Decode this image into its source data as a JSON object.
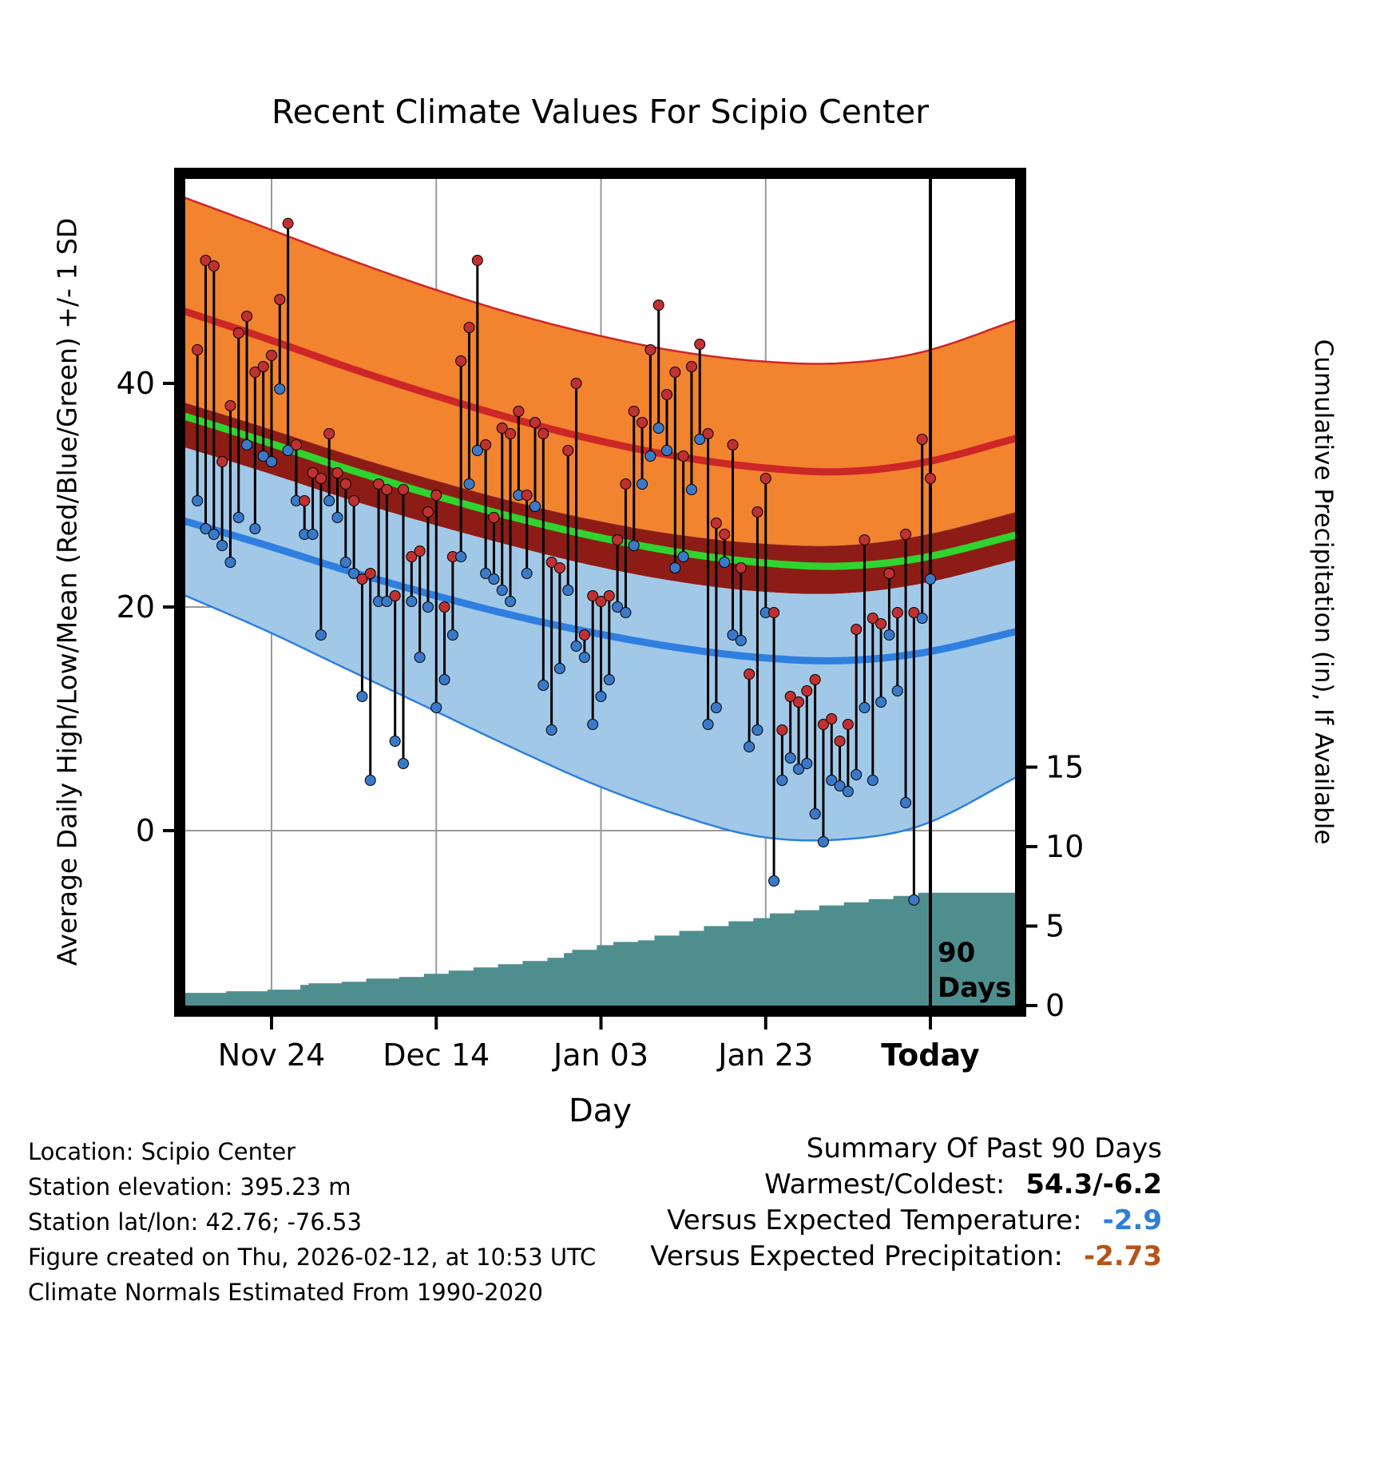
{
  "title": "Recent Climate Values For Scipio Center",
  "axes": {
    "left_label": "Average Daily High/Low/Mean (Red/Blue/Green) +/- 1 SD",
    "right_label": "Cumulative Precipitation (in), If Available",
    "x_label": "Day",
    "x_ticks": [
      {
        "day": 9,
        "label": "Nov 24",
        "bold": false
      },
      {
        "day": 29,
        "label": "Dec 14",
        "bold": false
      },
      {
        "day": 49,
        "label": "Jan 03",
        "bold": false
      },
      {
        "day": 69,
        "label": "Jan 23",
        "bold": false
      },
      {
        "day": 89,
        "label": "Today",
        "bold": true
      }
    ],
    "temp_ticks": [
      0,
      20,
      40
    ],
    "precip_ticks": [
      0,
      5,
      10,
      15
    ]
  },
  "annotations": {
    "vline_day": 89,
    "vline_label_lines": [
      "90",
      "Days"
    ]
  },
  "footer": {
    "lines": [
      "Location: Scipio Center",
      "Station elevation: 395.23 m",
      "Station lat/lon: 42.76; -76.53",
      "Figure created on Thu, 2026-02-12, at 10:53 UTC",
      "Climate Normals Estimated From 1990-2020"
    ]
  },
  "summary": {
    "title": "Summary Of Past 90 Days",
    "rows": [
      {
        "label": "Warmest/Coldest:",
        "value": "54.3/-6.2",
        "color": "#000000"
      },
      {
        "label": "Versus Expected Temperature:",
        "value": "-2.9",
        "color": "#2f7fd6"
      },
      {
        "label": "Versus Expected Precipitation:",
        "value": "-2.73",
        "color": "#b5541a"
      }
    ]
  },
  "chart_data": {
    "type": "line",
    "title": "Recent Climate Values For Scipio Center",
    "description": "90 days of daily high (red dot) / low (blue dot) temperature stems over climate-normal bands (mean high ±1SD orange, mean low ±1SD light blue, gap between bands maroon) with mean-high (red), mean (green) and mean-low (blue) curves, plus cumulative precipitation step area (teal) read on the right axis. Day index 0 = first day shown, 89 = Today (2026-02-12).",
    "x": {
      "label": "Day",
      "tick_days": [
        9,
        29,
        49,
        69,
        89
      ],
      "tick_labels": [
        "Nov 24",
        "Dec 14",
        "Jan 03",
        "Jan 23",
        "Today"
      ],
      "domain": [
        -3,
        100
      ]
    },
    "y_temp": {
      "label": "Average Daily High/Low/Mean (Red/Blue/Green) +/- 1 SD",
      "ticks": [
        0,
        20,
        40
      ],
      "range": [
        -16,
        58
      ]
    },
    "y_precip": {
      "label": "Cumulative Precipitation (in), If Available",
      "ticks": [
        0,
        5,
        10,
        15
      ]
    },
    "daily": {
      "high": [
        43,
        51,
        50.5,
        33,
        38,
        44.5,
        46,
        41,
        41.5,
        42.5,
        47.5,
        54.3,
        34.5,
        29.5,
        32,
        31.5,
        35.5,
        32,
        31,
        29.5,
        22.5,
        23,
        31,
        30.5,
        21,
        30.5,
        24.5,
        25,
        28.5,
        30,
        20,
        24.5,
        42,
        45,
        51,
        34.5,
        28,
        36,
        35.5,
        37.5,
        30,
        36.5,
        35.5,
        24,
        23.5,
        34,
        40,
        17.5,
        21,
        20.5,
        21,
        26,
        31,
        37.5,
        36.5,
        43,
        47,
        39,
        41,
        33.5,
        41.5,
        43.5,
        35.5,
        27.5,
        26.5,
        34.5,
        23.5,
        14,
        28.5,
        31.5,
        19.5,
        9,
        12,
        11.5,
        12.5,
        13.5,
        9.5,
        10,
        8,
        9.5,
        18,
        26,
        19,
        18.5,
        23,
        19.5,
        26.5,
        19.5,
        35,
        31.5
      ],
      "low": [
        29.5,
        27,
        26.5,
        25.5,
        24,
        28,
        34.5,
        27,
        33.5,
        33,
        39.5,
        34,
        29.5,
        26.5,
        26.5,
        17.5,
        29.5,
        28,
        24,
        23,
        12,
        4.5,
        20.5,
        20.5,
        8,
        6,
        20.5,
        15.5,
        20,
        11,
        13.5,
        17.5,
        24.5,
        31,
        34,
        23,
        22.5,
        21.5,
        20.5,
        30,
        23,
        29,
        13,
        9,
        14.5,
        21.5,
        16.5,
        15.5,
        9.5,
        12,
        13.5,
        20,
        19.5,
        25.5,
        31,
        33.5,
        36,
        34,
        23.5,
        24.5,
        30.5,
        35,
        9.5,
        11,
        24,
        17.5,
        17,
        7.5,
        9,
        19.5,
        -4.5,
        4.5,
        6.5,
        5.5,
        6,
        1.5,
        -1,
        4.5,
        4,
        3.5,
        5,
        11,
        4.5,
        11.5,
        17.5,
        12.5,
        2.5,
        -6.2,
        19,
        22.5
      ]
    },
    "cumulative_precip_in": [
      0.8,
      0.8,
      0.8,
      0.8,
      0.9,
      0.9,
      0.9,
      0.9,
      0.9,
      1.0,
      1.0,
      1.0,
      1.0,
      1.3,
      1.4,
      1.4,
      1.4,
      1.4,
      1.5,
      1.5,
      1.5,
      1.7,
      1.7,
      1.7,
      1.7,
      1.8,
      1.8,
      1.8,
      2.0,
      2.0,
      2.0,
      2.2,
      2.2,
      2.2,
      2.4,
      2.4,
      2.4,
      2.6,
      2.6,
      2.6,
      2.8,
      2.8,
      2.8,
      3.0,
      3.0,
      3.3,
      3.5,
      3.5,
      3.5,
      3.8,
      3.8,
      4.0,
      4.0,
      4.0,
      4.1,
      4.1,
      4.4,
      4.4,
      4.4,
      4.7,
      4.7,
      4.7,
      5.0,
      5.0,
      5.0,
      5.3,
      5.3,
      5.3,
      5.5,
      5.5,
      5.8,
      5.8,
      5.8,
      6.0,
      6.0,
      6.0,
      6.3,
      6.3,
      6.3,
      6.5,
      6.5,
      6.5,
      6.7,
      6.7,
      6.7,
      6.9,
      6.9,
      6.9,
      7.1,
      7.1
    ],
    "normals": {
      "sample_days": [
        -3,
        8,
        18,
        28,
        38,
        48,
        58,
        68,
        78,
        88,
        100
      ],
      "high_plus_sd": [
        57.0,
        54.0,
        51.2,
        48.6,
        46.3,
        44.4,
        42.9,
        42.0,
        41.8,
        42.8,
        45.8
      ],
      "mean_high": [
        46.8,
        44.1,
        41.5,
        39.1,
        36.9,
        35.0,
        33.5,
        32.5,
        32.1,
        32.9,
        35.2
      ],
      "high_minus_sd": [
        38.6,
        36.1,
        33.7,
        31.5,
        29.5,
        27.8,
        26.5,
        25.7,
        25.5,
        26.4,
        28.6
      ],
      "low_plus_sd": [
        34.6,
        32.1,
        29.7,
        27.5,
        25.5,
        23.7,
        22.3,
        21.4,
        21.2,
        22.1,
        24.3
      ],
      "mean_low": [
        28.0,
        25.6,
        23.3,
        21.2,
        19.3,
        17.7,
        16.4,
        15.5,
        15.2,
        15.9,
        17.9
      ],
      "low_minus_sd": [
        21.5,
        18.0,
        14.5,
        11.0,
        7.5,
        4.2,
        1.5,
        -0.5,
        -0.8,
        0.5,
        5.0
      ]
    },
    "colors": {
      "band_high": "#f2832f",
      "band_overlap": "#8e1c16",
      "band_low": "#a2c8e8",
      "line_high": "#cd2626",
      "line_mean": "#2fd42f",
      "line_low": "#2e7fe0",
      "dot_high": "#c13030",
      "dot_low": "#3a79c8",
      "precip_area": "#4f8e8f",
      "grid": "#999999",
      "stem": "#000000"
    }
  }
}
